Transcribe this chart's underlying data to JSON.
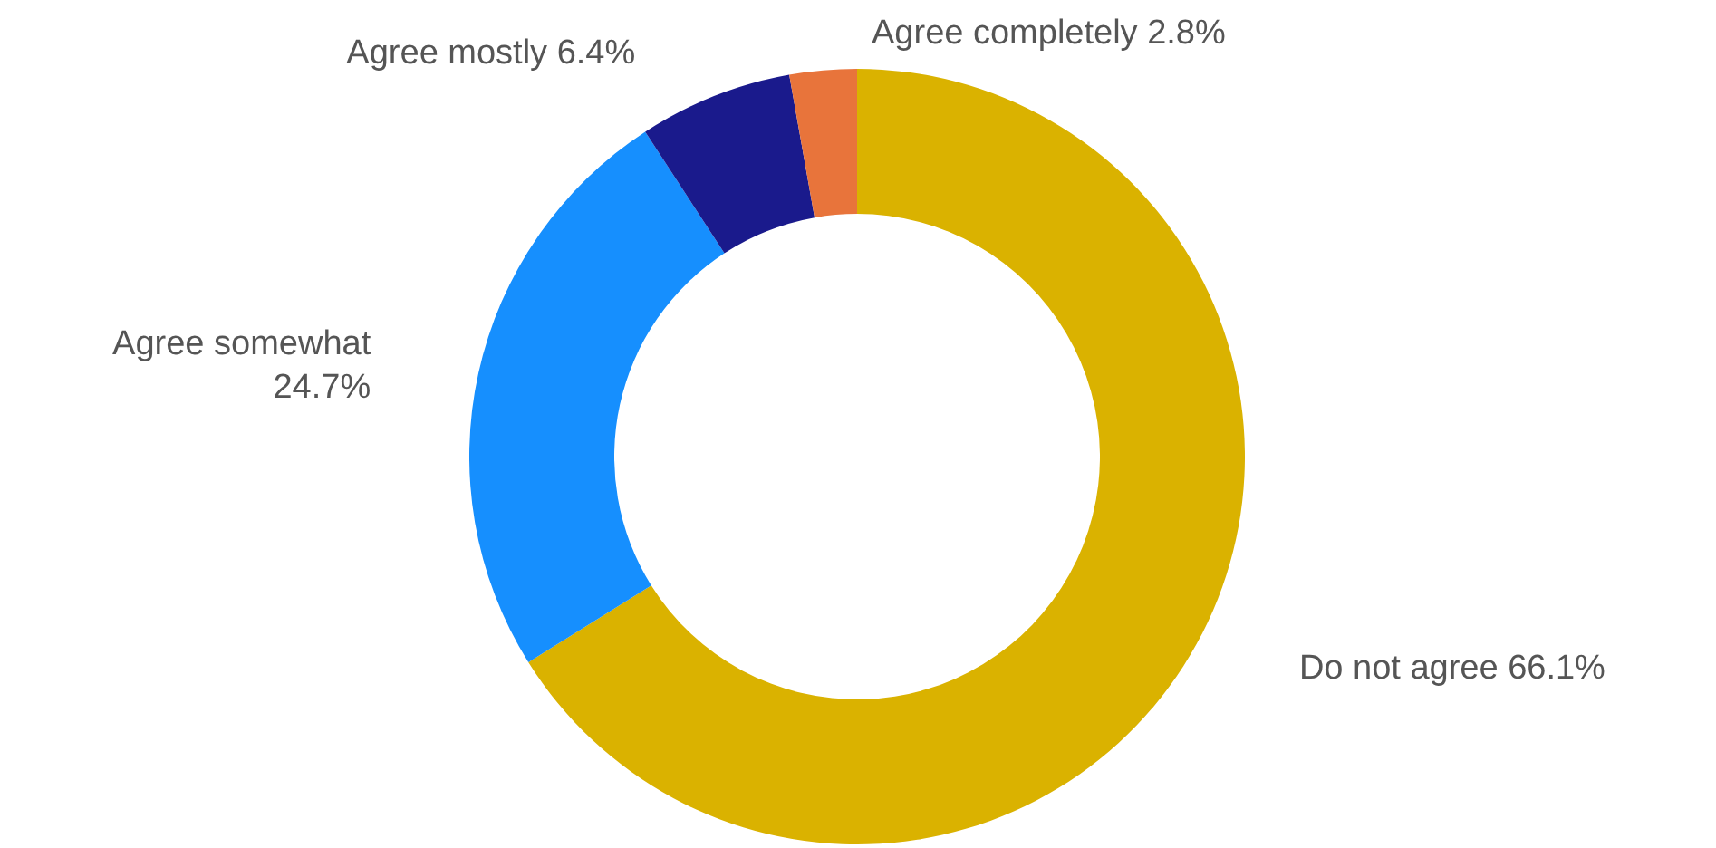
{
  "chart_data": {
    "type": "donut",
    "categories": [
      "Do not agree",
      "Agree somewhat",
      "Agree mostly",
      "Agree completely"
    ],
    "values": [
      66.1,
      24.7,
      6.4,
      2.8
    ],
    "value_labels": [
      "66.1%",
      "24.7%",
      "6.4%",
      "2.8%"
    ],
    "colors": [
      "#dab200",
      "#168ffe",
      "#1a1a8c",
      "#e8743b"
    ]
  }
}
